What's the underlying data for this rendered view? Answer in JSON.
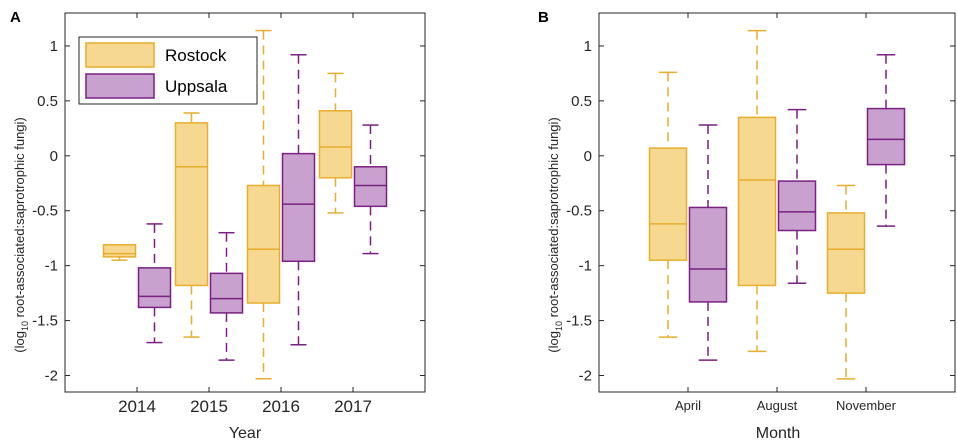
{
  "colors": {
    "rostock_fill": "#F6D890",
    "rostock_edge": "#E6AE2C",
    "uppsala_fill": "#C9A1CE",
    "uppsala_edge": "#7A1F83",
    "axis": "#262626"
  },
  "chart_data": [
    {
      "type": "box",
      "panel_label": "A",
      "xlabel": "Year",
      "ylabel_prefix": "(log",
      "ylabel_sub": "10",
      "ylabel_rest": " root-associated:saprotrophic fungi)",
      "ylim": [
        -2.15,
        1.3
      ],
      "yticks": [
        1,
        0.5,
        0,
        -0.5,
        -1,
        -1.5,
        -2
      ],
      "ytick_labels": [
        "1",
        "0.5",
        "0",
        "-0.5",
        "-1",
        "-1.5",
        "-2"
      ],
      "categories": [
        "2014",
        "2015",
        "2016",
        "2017"
      ],
      "legend": {
        "entries": [
          "Rostock",
          "Uppsala"
        ],
        "position": "top-left"
      },
      "series": [
        {
          "name": "Rostock",
          "boxes": [
            {
              "category": "2014",
              "lower_whisker": -0.95,
              "q1": -0.92,
              "median": -0.89,
              "q3": -0.81,
              "upper_whisker": -0.81
            },
            {
              "category": "2015",
              "lower_whisker": -1.65,
              "q1": -1.18,
              "median": -0.1,
              "q3": 0.3,
              "upper_whisker": 0.39
            },
            {
              "category": "2016",
              "lower_whisker": -2.03,
              "q1": -1.34,
              "median": -0.85,
              "q3": -0.27,
              "upper_whisker": 1.14
            },
            {
              "category": "2017",
              "lower_whisker": -0.52,
              "q1": -0.2,
              "median": 0.08,
              "q3": 0.41,
              "upper_whisker": 0.75
            }
          ]
        },
        {
          "name": "Uppsala",
          "boxes": [
            {
              "category": "2014",
              "lower_whisker": -1.7,
              "q1": -1.38,
              "median": -1.28,
              "q3": -1.02,
              "upper_whisker": -0.62
            },
            {
              "category": "2015",
              "lower_whisker": -1.86,
              "q1": -1.43,
              "median": -1.3,
              "q3": -1.07,
              "upper_whisker": -0.7
            },
            {
              "category": "2016",
              "lower_whisker": -1.72,
              "q1": -0.96,
              "median": -0.44,
              "q3": 0.02,
              "upper_whisker": 0.92
            },
            {
              "category": "2017",
              "lower_whisker": -0.89,
              "q1": -0.46,
              "median": -0.27,
              "q3": -0.1,
              "upper_whisker": 0.28
            }
          ]
        }
      ]
    },
    {
      "type": "box",
      "panel_label": "B",
      "xlabel": "Month",
      "ylabel_prefix": "(log",
      "ylabel_sub": "10",
      "ylabel_rest": " root-associated:saprotrophic fungi)",
      "ylim": [
        -2.15,
        1.3
      ],
      "yticks": [
        1,
        0.5,
        0,
        -0.5,
        -1,
        -1.5,
        -2
      ],
      "ytick_labels": [
        "1",
        "0.5",
        "0",
        "-0.5",
        "-1",
        "-1.5",
        "-2"
      ],
      "categories": [
        "April",
        "August",
        "November"
      ],
      "series": [
        {
          "name": "Rostock",
          "boxes": [
            {
              "category": "April",
              "lower_whisker": -1.65,
              "q1": -0.95,
              "median": -0.62,
              "q3": 0.07,
              "upper_whisker": 0.76
            },
            {
              "category": "August",
              "lower_whisker": -1.78,
              "q1": -1.18,
              "median": -0.22,
              "q3": 0.35,
              "upper_whisker": 1.14
            },
            {
              "category": "November",
              "lower_whisker": -2.03,
              "q1": -1.25,
              "median": -0.85,
              "q3": -0.52,
              "upper_whisker": -0.27
            }
          ]
        },
        {
          "name": "Uppsala",
          "boxes": [
            {
              "category": "April",
              "lower_whisker": -1.86,
              "q1": -1.33,
              "median": -1.03,
              "q3": -0.47,
              "upper_whisker": 0.28
            },
            {
              "category": "August",
              "lower_whisker": -1.16,
              "q1": -0.68,
              "median": -0.51,
              "q3": -0.23,
              "upper_whisker": 0.42
            },
            {
              "category": "November",
              "lower_whisker": -0.64,
              "q1": -0.08,
              "median": 0.15,
              "q3": 0.43,
              "upper_whisker": 0.92
            }
          ]
        }
      ]
    }
  ]
}
